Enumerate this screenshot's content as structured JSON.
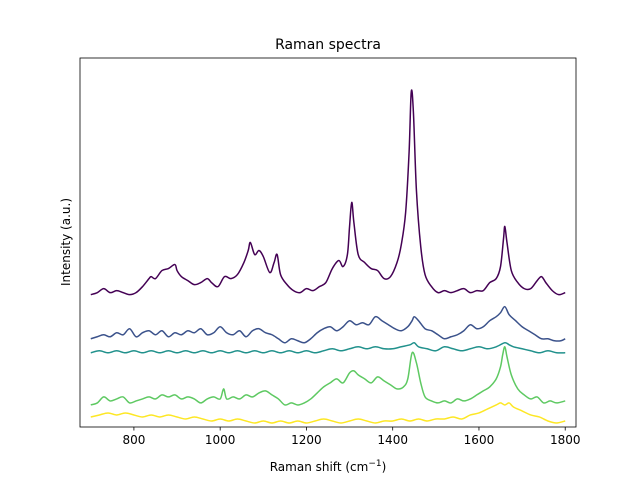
{
  "chart_data": {
    "type": "line",
    "title": "Raman spectra",
    "xlabel": "Raman shift (cm",
    "xlabel_superscript": "−1",
    "xlabel_suffix": ")",
    "ylabel": "Intensity (a.u.)",
    "xlim": [
      675,
      1825
    ],
    "ylim": [
      -0.12,
      1.72
    ],
    "xticks": [
      800,
      1000,
      1200,
      1400,
      1600,
      1800
    ],
    "yticks_visible": false,
    "grid": false,
    "legend": false,
    "colors": [
      "#440154",
      "#3b528b",
      "#21918c",
      "#5ec962",
      "#fde725"
    ],
    "series": [
      {
        "color": "#440154",
        "x": [
          700,
          715,
          730,
          745,
          760,
          775,
          790,
          805,
          820,
          835,
          840,
          850,
          865,
          880,
          895,
          900,
          910,
          925,
          940,
          955,
          970,
          980,
          995,
          1010,
          1025,
          1040,
          1055,
          1065,
          1070,
          1080,
          1090,
          1100,
          1115,
          1125,
          1132,
          1140,
          1155,
          1170,
          1185,
          1200,
          1215,
          1230,
          1245,
          1260,
          1275,
          1285,
          1295,
          1300,
          1305,
          1310,
          1320,
          1335,
          1350,
          1365,
          1380,
          1395,
          1410,
          1420,
          1430,
          1438,
          1443,
          1448,
          1455,
          1465,
          1475,
          1490,
          1505,
          1520,
          1535,
          1550,
          1565,
          1580,
          1595,
          1610,
          1625,
          1640,
          1650,
          1657,
          1660,
          1665,
          1675,
          1690,
          1705,
          1720,
          1735,
          1745,
          1755,
          1770,
          1785,
          1800
        ],
        "y": [
          0.54,
          0.55,
          0.57,
          0.55,
          0.56,
          0.55,
          0.54,
          0.55,
          0.58,
          0.62,
          0.63,
          0.62,
          0.66,
          0.67,
          0.69,
          0.66,
          0.63,
          0.61,
          0.59,
          0.6,
          0.62,
          0.6,
          0.58,
          0.63,
          0.62,
          0.64,
          0.7,
          0.76,
          0.8,
          0.74,
          0.76,
          0.73,
          0.65,
          0.7,
          0.74,
          0.64,
          0.59,
          0.56,
          0.55,
          0.57,
          0.56,
          0.58,
          0.6,
          0.67,
          0.71,
          0.68,
          0.74,
          0.88,
          1.0,
          0.9,
          0.74,
          0.7,
          0.67,
          0.66,
          0.62,
          0.63,
          0.7,
          0.79,
          0.95,
          1.25,
          1.55,
          1.45,
          1.06,
          0.78,
          0.64,
          0.58,
          0.55,
          0.56,
          0.55,
          0.56,
          0.57,
          0.55,
          0.56,
          0.56,
          0.6,
          0.62,
          0.68,
          0.82,
          0.88,
          0.8,
          0.66,
          0.6,
          0.57,
          0.57,
          0.61,
          0.63,
          0.6,
          0.56,
          0.54,
          0.55
        ]
      },
      {
        "color": "#3b528b",
        "x": [
          700,
          715,
          730,
          745,
          760,
          775,
          790,
          805,
          820,
          835,
          850,
          865,
          880,
          895,
          910,
          925,
          940,
          955,
          970,
          985,
          1000,
          1015,
          1030,
          1045,
          1060,
          1075,
          1090,
          1105,
          1120,
          1135,
          1150,
          1165,
          1180,
          1195,
          1210,
          1225,
          1240,
          1255,
          1270,
          1285,
          1300,
          1315,
          1330,
          1345,
          1360,
          1375,
          1390,
          1405,
          1420,
          1435,
          1445,
          1450,
          1460,
          1475,
          1490,
          1505,
          1520,
          1535,
          1550,
          1565,
          1580,
          1595,
          1610,
          1625,
          1640,
          1650,
          1660,
          1670,
          1685,
          1700,
          1715,
          1730,
          1745,
          1760,
          1775,
          1790,
          1800
        ],
        "y": [
          0.32,
          0.33,
          0.34,
          0.33,
          0.35,
          0.34,
          0.37,
          0.33,
          0.35,
          0.36,
          0.34,
          0.36,
          0.33,
          0.35,
          0.34,
          0.36,
          0.35,
          0.37,
          0.34,
          0.35,
          0.38,
          0.35,
          0.34,
          0.36,
          0.33,
          0.36,
          0.37,
          0.35,
          0.34,
          0.32,
          0.3,
          0.32,
          0.31,
          0.3,
          0.32,
          0.35,
          0.37,
          0.38,
          0.36,
          0.38,
          0.41,
          0.39,
          0.4,
          0.39,
          0.43,
          0.41,
          0.39,
          0.37,
          0.36,
          0.38,
          0.41,
          0.43,
          0.41,
          0.37,
          0.36,
          0.34,
          0.32,
          0.33,
          0.34,
          0.36,
          0.39,
          0.37,
          0.38,
          0.41,
          0.43,
          0.45,
          0.48,
          0.44,
          0.41,
          0.38,
          0.36,
          0.34,
          0.32,
          0.32,
          0.31,
          0.31,
          0.32
        ]
      },
      {
        "color": "#21918c",
        "x": [
          700,
          720,
          740,
          760,
          780,
          800,
          820,
          840,
          860,
          880,
          900,
          920,
          940,
          960,
          980,
          1000,
          1020,
          1040,
          1060,
          1080,
          1100,
          1120,
          1140,
          1160,
          1180,
          1200,
          1220,
          1240,
          1260,
          1280,
          1300,
          1320,
          1340,
          1360,
          1380,
          1400,
          1420,
          1440,
          1450,
          1460,
          1480,
          1500,
          1520,
          1540,
          1560,
          1580,
          1600,
          1620,
          1640,
          1660,
          1670,
          1680,
          1700,
          1720,
          1740,
          1760,
          1780,
          1800
        ],
        "y": [
          0.25,
          0.26,
          0.25,
          0.26,
          0.25,
          0.26,
          0.25,
          0.26,
          0.25,
          0.26,
          0.25,
          0.26,
          0.25,
          0.26,
          0.25,
          0.26,
          0.25,
          0.26,
          0.25,
          0.26,
          0.25,
          0.26,
          0.25,
          0.26,
          0.25,
          0.26,
          0.25,
          0.26,
          0.27,
          0.26,
          0.27,
          0.28,
          0.27,
          0.28,
          0.27,
          0.27,
          0.28,
          0.29,
          0.3,
          0.28,
          0.27,
          0.26,
          0.28,
          0.27,
          0.26,
          0.27,
          0.28,
          0.27,
          0.28,
          0.3,
          0.29,
          0.28,
          0.27,
          0.26,
          0.25,
          0.26,
          0.25,
          0.25
        ]
      },
      {
        "color": "#5ec962",
        "x": [
          700,
          715,
          730,
          745,
          760,
          775,
          790,
          805,
          820,
          835,
          850,
          865,
          880,
          895,
          910,
          925,
          940,
          955,
          970,
          985,
          1000,
          1008,
          1015,
          1030,
          1045,
          1060,
          1075,
          1090,
          1105,
          1120,
          1135,
          1150,
          1165,
          1180,
          1195,
          1210,
          1225,
          1240,
          1255,
          1270,
          1285,
          1300,
          1310,
          1320,
          1335,
          1350,
          1365,
          1380,
          1395,
          1410,
          1425,
          1435,
          1445,
          1455,
          1465,
          1475,
          1490,
          1505,
          1520,
          1535,
          1550,
          1565,
          1580,
          1595,
          1610,
          1625,
          1640,
          1650,
          1655,
          1660,
          1665,
          1675,
          1690,
          1705,
          1720,
          1735,
          1750,
          1765,
          1780,
          1800
        ],
        "y": [
          -0.01,
          0.0,
          0.03,
          0.01,
          0.02,
          0.03,
          0.0,
          0.01,
          0.02,
          0.03,
          0.02,
          0.04,
          0.03,
          0.04,
          0.02,
          0.03,
          0.02,
          0.0,
          0.02,
          0.03,
          0.02,
          0.07,
          0.02,
          0.03,
          0.02,
          0.04,
          0.03,
          0.05,
          0.06,
          0.04,
          0.02,
          -0.01,
          0.0,
          -0.01,
          0.0,
          0.02,
          0.05,
          0.08,
          0.1,
          0.12,
          0.1,
          0.15,
          0.16,
          0.14,
          0.12,
          0.1,
          0.13,
          0.11,
          0.09,
          0.07,
          0.08,
          0.12,
          0.25,
          0.2,
          0.1,
          0.03,
          0.01,
          0.0,
          0.01,
          0.0,
          0.02,
          0.01,
          0.02,
          0.04,
          0.06,
          0.08,
          0.12,
          0.18,
          0.24,
          0.28,
          0.23,
          0.14,
          0.07,
          0.04,
          0.02,
          0.03,
          0.0,
          0.01,
          0.0,
          0.01
        ]
      },
      {
        "color": "#fde725",
        "x": [
          700,
          720,
          740,
          760,
          780,
          800,
          820,
          840,
          860,
          880,
          900,
          920,
          940,
          960,
          980,
          1000,
          1020,
          1040,
          1060,
          1080,
          1100,
          1120,
          1140,
          1160,
          1180,
          1200,
          1220,
          1240,
          1260,
          1280,
          1300,
          1320,
          1340,
          1360,
          1380,
          1400,
          1420,
          1440,
          1460,
          1480,
          1500,
          1520,
          1540,
          1560,
          1580,
          1600,
          1620,
          1640,
          1650,
          1660,
          1670,
          1680,
          1700,
          1720,
          1740,
          1760,
          1780,
          1800
        ],
        "y": [
          -0.07,
          -0.06,
          -0.05,
          -0.06,
          -0.05,
          -0.06,
          -0.07,
          -0.06,
          -0.07,
          -0.06,
          -0.07,
          -0.08,
          -0.07,
          -0.08,
          -0.09,
          -0.08,
          -0.09,
          -0.08,
          -0.09,
          -0.1,
          -0.09,
          -0.1,
          -0.09,
          -0.1,
          -0.09,
          -0.1,
          -0.09,
          -0.08,
          -0.09,
          -0.1,
          -0.09,
          -0.08,
          -0.09,
          -0.1,
          -0.09,
          -0.09,
          -0.08,
          -0.09,
          -0.08,
          -0.09,
          -0.08,
          -0.08,
          -0.07,
          -0.08,
          -0.06,
          -0.05,
          -0.03,
          -0.01,
          0.0,
          -0.01,
          0.0,
          -0.02,
          -0.04,
          -0.06,
          -0.07,
          -0.09,
          -0.1,
          -0.09
        ]
      }
    ]
  }
}
